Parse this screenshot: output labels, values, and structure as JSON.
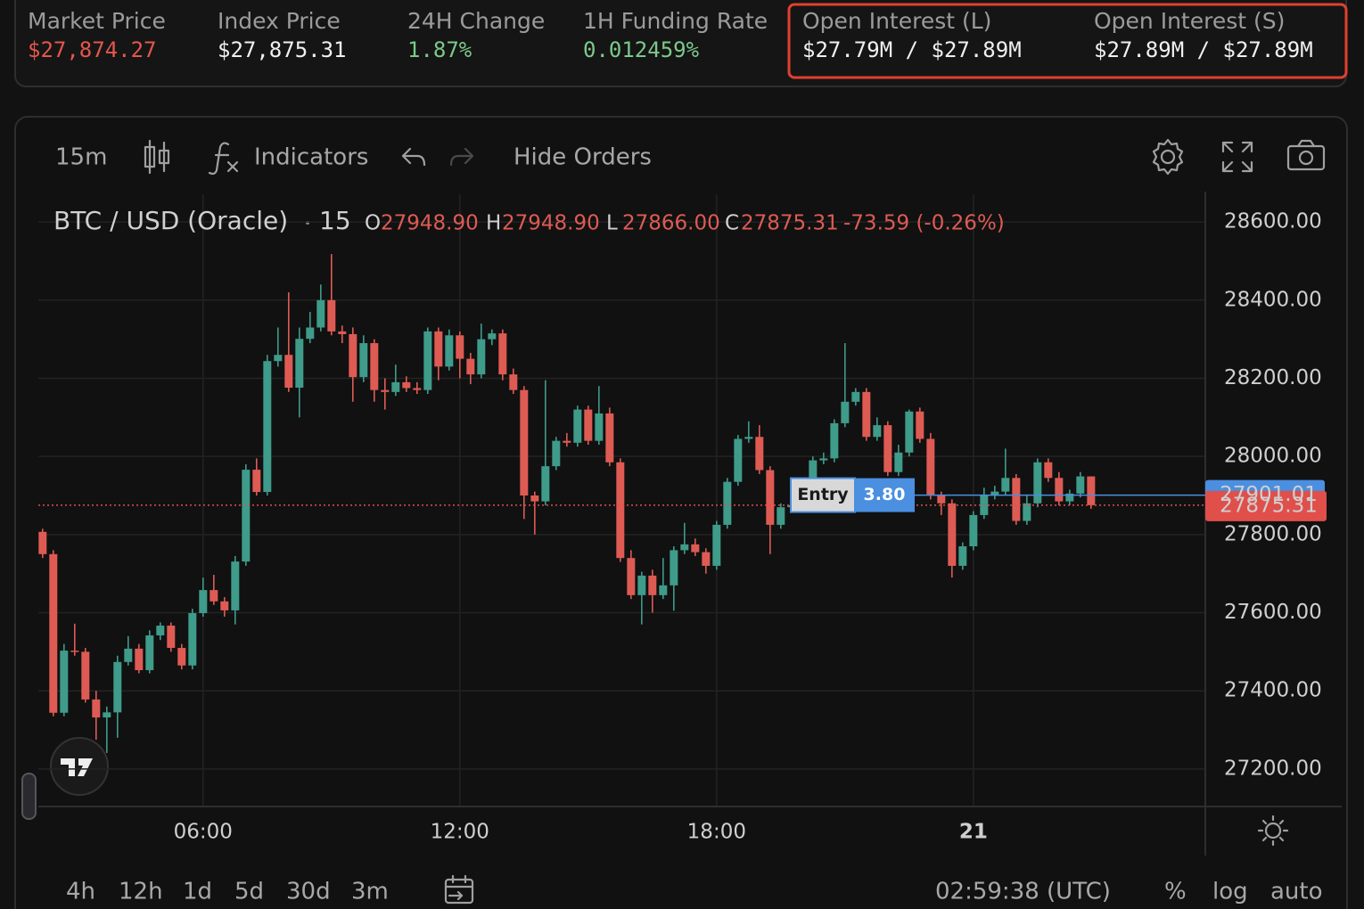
{
  "header": {
    "stats": [
      {
        "label": "Market Price",
        "value": "$27,874.27",
        "tone": "down"
      },
      {
        "label": "Index Price",
        "value": "$27,875.31",
        "tone": "neutral"
      },
      {
        "label": "24H Change",
        "value": "1.87%",
        "tone": "up"
      },
      {
        "label": "1H Funding Rate",
        "value": "0.012459%",
        "tone": "up"
      },
      {
        "label": "Open Interest (L)",
        "value": "$27.79M / $27.89M",
        "tone": "neutral"
      },
      {
        "label": "Open Interest (S)",
        "value": "$27.89M / $27.89M",
        "tone": "neutral"
      }
    ]
  },
  "toolbar": {
    "interval": "15m",
    "indicators": "Indicators",
    "hide_orders": "Hide Orders"
  },
  "legend": {
    "symbol": "BTC / USD (Oracle)",
    "interval": "15",
    "items": [
      {
        "key": "O",
        "value": "27948.90"
      },
      {
        "key": "H",
        "value": "27948.90"
      },
      {
        "key": "L",
        "value": "27866.00"
      },
      {
        "key": "C",
        "value": "27875.31"
      }
    ],
    "change": "-73.59 (-0.26%)"
  },
  "chart_data": {
    "type": "candlestick",
    "up_color": "#3f9b8a",
    "down_color": "#de5b54",
    "grid": true,
    "x": [
      2.25,
      2.5,
      2.75,
      3,
      3.25,
      3.5,
      3.75,
      4,
      4.25,
      4.5,
      4.75,
      5,
      5.25,
      5.5,
      5.75,
      6,
      6.25,
      6.5,
      6.75,
      7,
      7.25,
      7.5,
      7.75,
      8,
      8.25,
      8.5,
      8.75,
      9,
      9.25,
      9.5,
      9.75,
      10,
      10.25,
      10.5,
      10.75,
      11,
      11.25,
      11.5,
      11.75,
      12,
      12.25,
      12.5,
      12.75,
      13,
      13.25,
      13.5,
      13.75,
      14,
      14.25,
      14.5,
      14.75,
      15,
      15.25,
      15.5,
      15.75,
      16,
      16.25,
      16.5,
      16.75,
      17,
      17.25,
      17.5,
      17.75,
      18,
      18.25,
      18.5,
      18.75,
      19,
      19.25,
      19.5,
      19.75,
      20,
      20.25,
      20.5,
      20.75,
      21,
      21.25,
      21.5,
      21.75,
      22,
      22.25,
      22.5,
      22.75,
      23,
      23.25,
      23.5,
      23.75,
      24,
      24.25,
      24.5,
      24.75,
      25,
      25.25,
      25.5,
      25.75,
      26,
      26.25,
      26.5,
      26.75
    ],
    "open": [
      27807,
      27750,
      27344,
      27503,
      27500,
      27378,
      27332,
      27345,
      27474,
      27508,
      27453,
      27542,
      27567,
      27510,
      27465,
      27599,
      27658,
      27629,
      27606,
      27731,
      27966,
      27909,
      28244,
      28260,
      28176,
      28301,
      28330,
      28400,
      28320,
      28313,
      28203,
      28290,
      28170,
      28165,
      28190,
      28175,
      28170,
      28320,
      28230,
      28310,
      28250,
      28210,
      28300,
      28315,
      28210,
      28170,
      27900,
      27885,
      27975,
      28040,
      28035,
      28120,
      28040,
      28110,
      27985,
      27740,
      27645,
      27695,
      27645,
      27670,
      27760,
      27775,
      27755,
      27720,
      27825,
      27935,
      28045,
      28050,
      27965,
      27825,
      27870,
      27875,
      27900,
      27990,
      27995,
      28085,
      28140,
      28165,
      28050,
      28080,
      27960,
      28010,
      28115,
      28045,
      27900,
      27880,
      27720,
      27770,
      27850,
      27900,
      27910,
      27945,
      27835,
      27880,
      27985,
      27945,
      27885,
      27905,
      27948.9
    ],
    "high": [
      27815,
      27760,
      27520,
      27572,
      27510,
      27400,
      27360,
      27490,
      27540,
      27520,
      27555,
      27575,
      27575,
      27520,
      27610,
      27690,
      27697,
      27640,
      27745,
      27980,
      27995,
      28260,
      28330,
      28420,
      28330,
      28370,
      28440,
      28518,
      28335,
      28330,
      28310,
      28300,
      28200,
      28235,
      28205,
      28190,
      28330,
      28330,
      28325,
      28320,
      28265,
      28340,
      28325,
      28325,
      28225,
      28180,
      27910,
      28195,
      28050,
      28060,
      28130,
      28130,
      28180,
      28125,
      27995,
      27760,
      27705,
      27710,
      27740,
      27770,
      27830,
      27790,
      27765,
      27835,
      27945,
      28055,
      28090,
      28080,
      27975,
      27880,
      27890,
      27920,
      28000,
      28010,
      28095,
      28290,
      28175,
      28175,
      28100,
      28090,
      28030,
      28120,
      28125,
      28060,
      27910,
      27890,
      27780,
      27860,
      27920,
      27925,
      28020,
      27955,
      27900,
      27995,
      27995,
      27960,
      27915,
      27960,
      27948.9
    ],
    "low": [
      27740,
      27335,
      27335,
      27490,
      27370,
      27275,
      27241,
      27280,
      27465,
      27445,
      27445,
      27530,
      27500,
      27455,
      27455,
      27590,
      27620,
      27590,
      27570,
      27720,
      27900,
      27900,
      28230,
      28165,
      28100,
      28290,
      28320,
      28310,
      28290,
      28140,
      28190,
      28140,
      28120,
      28155,
      28165,
      28160,
      28160,
      28195,
      28220,
      28200,
      28185,
      28200,
      28285,
      28195,
      28160,
      27840,
      27800,
      27875,
      27965,
      28025,
      28025,
      28030,
      28030,
      27975,
      27730,
      27635,
      27570,
      27600,
      27635,
      27605,
      27750,
      27745,
      27700,
      27710,
      27815,
      27925,
      28035,
      27955,
      27750,
      27815,
      27860,
      27865,
      27890,
      27980,
      27985,
      28075,
      28130,
      28040,
      28040,
      27950,
      27950,
      28000,
      28035,
      27890,
      27850,
      27690,
      27710,
      27760,
      27840,
      27890,
      27900,
      27825,
      27825,
      27870,
      27935,
      27875,
      27875,
      27895,
      27866
    ],
    "close": [
      27750,
      27344,
      27503,
      27500,
      27378,
      27332,
      27345,
      27474,
      27508,
      27453,
      27542,
      27567,
      27510,
      27465,
      27599,
      27658,
      27629,
      27606,
      27731,
      27966,
      27909,
      28244,
      28260,
      28176,
      28301,
      28330,
      28400,
      28320,
      28313,
      28203,
      28290,
      28170,
      28165,
      28190,
      28175,
      28170,
      28320,
      28230,
      28310,
      28250,
      28210,
      28300,
      28315,
      28210,
      28170,
      27900,
      27885,
      27975,
      28040,
      28035,
      28120,
      28040,
      28110,
      27985,
      27740,
      27645,
      27695,
      27645,
      27670,
      27760,
      27775,
      27755,
      27720,
      27825,
      27935,
      28045,
      28050,
      27965,
      27825,
      27870,
      27875,
      27900,
      27990,
      27995,
      28085,
      28140,
      28165,
      28050,
      28080,
      27960,
      28010,
      28115,
      28045,
      27900,
      27880,
      27720,
      27770,
      27850,
      27900,
      27910,
      27945,
      27835,
      27880,
      27985,
      27945,
      27885,
      27905,
      27948.9,
      27875.31
    ],
    "xlim": [
      2.15,
      29.42
    ],
    "xticks": [
      {
        "value": 6,
        "label": "06:00"
      },
      {
        "value": 12,
        "label": "12:00"
      },
      {
        "value": 18,
        "label": "18:00"
      },
      {
        "value": 24,
        "label": "21"
      }
    ],
    "ylim": [
      27104,
      28671
    ],
    "yticks": [
      {
        "value": 27200,
        "label": "27200.00"
      },
      {
        "value": 27400,
        "label": "27400.00"
      },
      {
        "value": 27600,
        "label": "27600.00"
      },
      {
        "value": 27800,
        "label": "27800.00"
      },
      {
        "value": 28000,
        "label": "28000.00"
      },
      {
        "value": 28200,
        "label": "28200.00"
      },
      {
        "value": 28400,
        "label": "28400.00"
      },
      {
        "value": 28600,
        "label": "28600.00"
      }
    ],
    "position_line": {
      "value": 27901.01,
      "label": "27901.01",
      "color": "#4a8fe0"
    },
    "last_price": {
      "value": 27875.31,
      "label": "27875.31",
      "color": "#e04f4a"
    },
    "entry": {
      "label": "Entry",
      "size": "3.80"
    }
  },
  "footer": {
    "ranges": [
      "4h",
      "12h",
      "1d",
      "5d",
      "30d",
      "3m"
    ],
    "clock": "02:59:38 (UTC)",
    "options": [
      "%",
      "log",
      "auto"
    ]
  }
}
